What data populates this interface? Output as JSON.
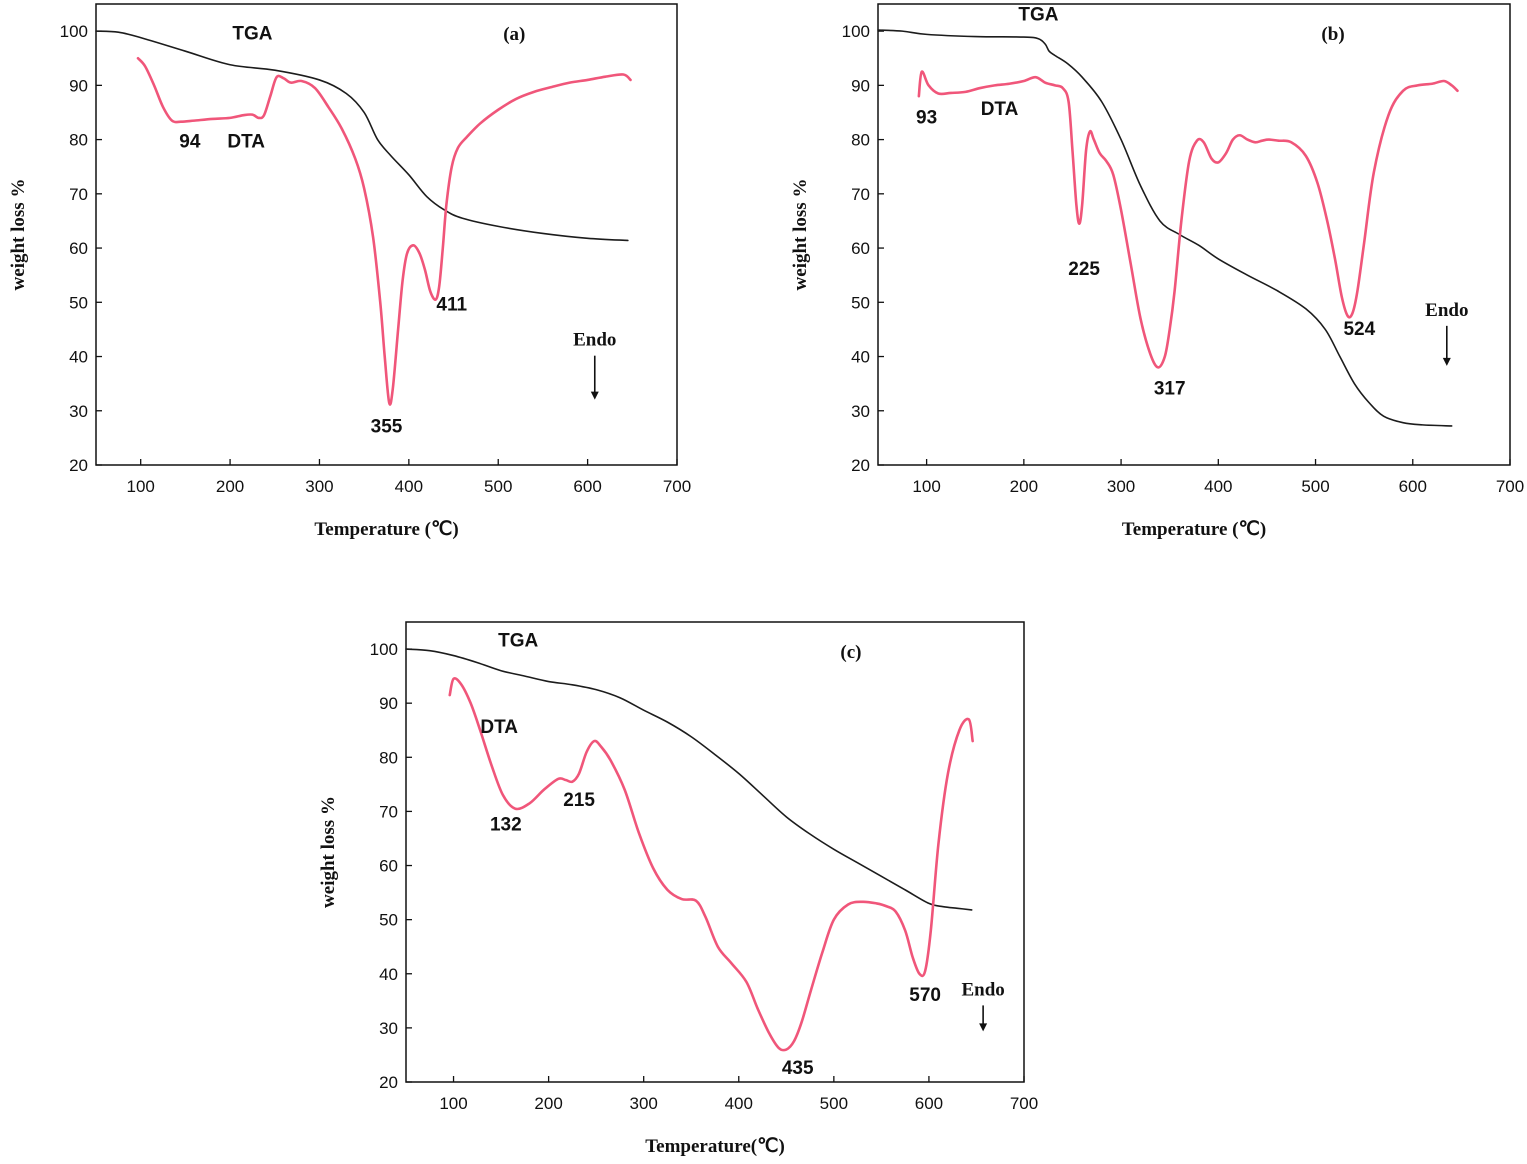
{
  "colors": {
    "tga": "#1c1c1c",
    "dta": "#f0567a",
    "axis": "#111111"
  },
  "chart_data": [
    {
      "type": "line",
      "panel_label": "(a)",
      "xlabel": "Temperature (℃)",
      "ylabel": "weight loss %",
      "xlim": [
        50,
        700
      ],
      "ylim": [
        20,
        105
      ],
      "x_ticks": [
        100,
        200,
        300,
        400,
        500,
        600,
        700
      ],
      "y_ticks": [
        20,
        30,
        40,
        50,
        60,
        70,
        80,
        90,
        100
      ],
      "grid": false,
      "series": [
        {
          "name": "TGA",
          "role": "tga",
          "x": [
            50,
            75,
            100,
            150,
            200,
            250,
            300,
            330,
            350,
            365,
            380,
            400,
            420,
            440,
            460,
            500,
            550,
            600,
            645
          ],
          "y": [
            100,
            99.8,
            98.8,
            96.3,
            93.8,
            92.8,
            91,
            88.5,
            85,
            80,
            77,
            73.5,
            69.5,
            67,
            65.5,
            64,
            62.7,
            61.8,
            61.4
          ]
        },
        {
          "name": "DTA",
          "role": "dta",
          "x": [
            97,
            105,
            115,
            125,
            135,
            145,
            160,
            180,
            200,
            215,
            225,
            232,
            238,
            245,
            252,
            260,
            268,
            280,
            295,
            310,
            325,
            340,
            350,
            360,
            368,
            373,
            378,
            382,
            388,
            393,
            398,
            405,
            412,
            418,
            424,
            430,
            434,
            438,
            442,
            448,
            455,
            465,
            480,
            500,
            520,
            540,
            560,
            580,
            600,
            620,
            640,
            648
          ],
          "y": [
            95,
            93.5,
            90,
            86,
            83.5,
            83.3,
            83.5,
            83.8,
            84,
            84.5,
            84.6,
            84,
            84.5,
            88,
            91.5,
            91.3,
            90.5,
            90.8,
            89.5,
            86,
            82,
            76.5,
            71,
            62,
            50,
            40,
            31.5,
            34,
            45,
            54,
            59,
            60.5,
            59,
            56,
            52,
            50.5,
            53,
            60,
            68,
            75,
            78.5,
            80.5,
            83,
            85.5,
            87.5,
            88.8,
            89.7,
            90.5,
            91,
            91.6,
            92,
            91
          ]
        }
      ],
      "annotations": [
        {
          "text": "TGA",
          "x": 225,
          "y": 98.5
        },
        {
          "text": "DTA",
          "x": 218,
          "y": 78.5
        },
        {
          "text": "94",
          "x": 155,
          "y": 78.5
        },
        {
          "text": "355",
          "x": 375,
          "y": 26
        },
        {
          "text": "411",
          "x": 448,
          "y": 48.5
        },
        {
          "text": "Endo",
          "x": 608,
          "y": 42
        }
      ]
    },
    {
      "type": "line",
      "panel_label": "(b)",
      "xlabel": "Temperature (℃)",
      "ylabel": "weight loss %",
      "xlim": [
        50,
        700
      ],
      "ylim": [
        20,
        105
      ],
      "x_ticks": [
        100,
        200,
        300,
        400,
        500,
        600,
        700
      ],
      "y_ticks": [
        20,
        30,
        40,
        50,
        60,
        70,
        80,
        90,
        100
      ],
      "grid": false,
      "series": [
        {
          "name": "TGA",
          "role": "tga",
          "x": [
            50,
            75,
            100,
            150,
            200,
            215,
            222,
            226,
            232,
            245,
            260,
            280,
            300,
            320,
            340,
            360,
            380,
            400,
            430,
            460,
            490,
            510,
            525,
            540,
            555,
            570,
            590,
            610,
            640
          ],
          "y": [
            100.2,
            100,
            99.4,
            99,
            98.9,
            98.6,
            97.6,
            96.3,
            95.5,
            94,
            91.5,
            87,
            80,
            71.5,
            65,
            62.5,
            60.5,
            58,
            55,
            52.2,
            48.8,
            45,
            40,
            35,
            31.5,
            29,
            27.8,
            27.4,
            27.2
          ]
        },
        {
          "name": "DTA",
          "role": "dta",
          "x": [
            92,
            95,
            102,
            112,
            125,
            140,
            155,
            170,
            185,
            200,
            212,
            222,
            232,
            240,
            246,
            250,
            254,
            257,
            260,
            264,
            268,
            272,
            278,
            285,
            292,
            300,
            310,
            320,
            330,
            338,
            345,
            350,
            355,
            362,
            370,
            378,
            385,
            393,
            400,
            408,
            415,
            422,
            430,
            438,
            445,
            452,
            462,
            475,
            490,
            502,
            512,
            520,
            527,
            533,
            538,
            543,
            550,
            560,
            575,
            590,
            605,
            620,
            632,
            640,
            646
          ],
          "y": [
            88,
            92.5,
            90,
            88.5,
            88.6,
            88.8,
            89.5,
            90,
            90.3,
            90.8,
            91.5,
            90.5,
            90,
            89.5,
            87,
            78,
            68,
            64.5,
            68,
            78,
            81.5,
            80,
            77.5,
            76,
            73.5,
            67,
            57,
            47,
            40.5,
            38,
            40,
            45,
            52,
            65,
            76,
            79.8,
            79.5,
            76.5,
            75.8,
            77.5,
            80,
            80.8,
            80,
            79.5,
            79.8,
            80,
            79.8,
            79.5,
            77,
            72,
            65,
            58,
            51,
            47.5,
            48,
            52,
            61,
            74,
            84.5,
            89,
            90,
            90.3,
            90.8,
            90,
            89
          ]
        }
      ],
      "annotations": [
        {
          "text": "TGA",
          "x": 215,
          "y": 102
        },
        {
          "text": "93",
          "x": 100,
          "y": 83
        },
        {
          "text": "DTA",
          "x": 175,
          "y": 84.5
        },
        {
          "text": "225",
          "x": 262,
          "y": 55
        },
        {
          "text": "317",
          "x": 350,
          "y": 33
        },
        {
          "text": "524",
          "x": 545,
          "y": 44
        },
        {
          "text": "Endo",
          "x": 635,
          "y": 47.5
        }
      ]
    },
    {
      "type": "line",
      "panel_label": "(c)",
      "xlabel": "Temperature(℃)",
      "ylabel": "weight loss %",
      "xlim": [
        50,
        700
      ],
      "ylim": [
        20,
        105
      ],
      "x_ticks": [
        100,
        200,
        300,
        400,
        500,
        600,
        700
      ],
      "y_ticks": [
        20,
        30,
        40,
        50,
        60,
        70,
        80,
        90,
        100
      ],
      "grid": false,
      "series": [
        {
          "name": "TGA",
          "role": "tga",
          "x": [
            50,
            75,
            100,
            125,
            150,
            175,
            200,
            225,
            250,
            275,
            300,
            325,
            350,
            375,
            400,
            425,
            450,
            475,
            500,
            525,
            550,
            575,
            600,
            615,
            630,
            645
          ],
          "y": [
            100,
            99.7,
            98.8,
            97.5,
            96,
            95,
            94,
            93.4,
            92.5,
            91,
            88.7,
            86.5,
            83.8,
            80.5,
            77,
            73,
            69,
            65.8,
            63,
            60.5,
            58,
            55.5,
            53,
            52.4,
            52.1,
            51.8
          ]
        },
        {
          "name": "DTA",
          "role": "dta",
          "x": [
            96,
            100,
            108,
            118,
            128,
            140,
            152,
            165,
            180,
            195,
            210,
            218,
            225,
            232,
            240,
            248,
            255,
            265,
            280,
            295,
            310,
            325,
            340,
            355,
            365,
            378,
            392,
            408,
            420,
            432,
            442,
            450,
            458,
            466,
            476,
            488,
            500,
            515,
            530,
            545,
            555,
            565,
            575,
            583,
            590,
            596,
            602,
            610,
            620,
            632,
            642,
            646
          ],
          "y": [
            91.5,
            94.5,
            93.5,
            90,
            85,
            78.5,
            73,
            70.5,
            71.5,
            74,
            76,
            75.8,
            75.5,
            77,
            81,
            83,
            82,
            79.5,
            74,
            66,
            59.5,
            55.5,
            53.8,
            53.5,
            50.5,
            45,
            42,
            38.5,
            33.5,
            29,
            26.3,
            26,
            27.5,
            31,
            37,
            44,
            50,
            52.8,
            53.3,
            53,
            52.5,
            51.5,
            48,
            43,
            40,
            40.5,
            48,
            64,
            77,
            85,
            87,
            83
          ]
        }
      ],
      "annotations": [
        {
          "text": "TGA",
          "x": 168,
          "y": 100.5
        },
        {
          "text": "DTA",
          "x": 148,
          "y": 84.5
        },
        {
          "text": "132",
          "x": 155,
          "y": 66.5
        },
        {
          "text": "215",
          "x": 232,
          "y": 71
        },
        {
          "text": "435",
          "x": 462,
          "y": 21.5
        },
        {
          "text": "570",
          "x": 596,
          "y": 35
        },
        {
          "text": "Endo",
          "x": 657,
          "y": 36
        }
      ]
    }
  ]
}
